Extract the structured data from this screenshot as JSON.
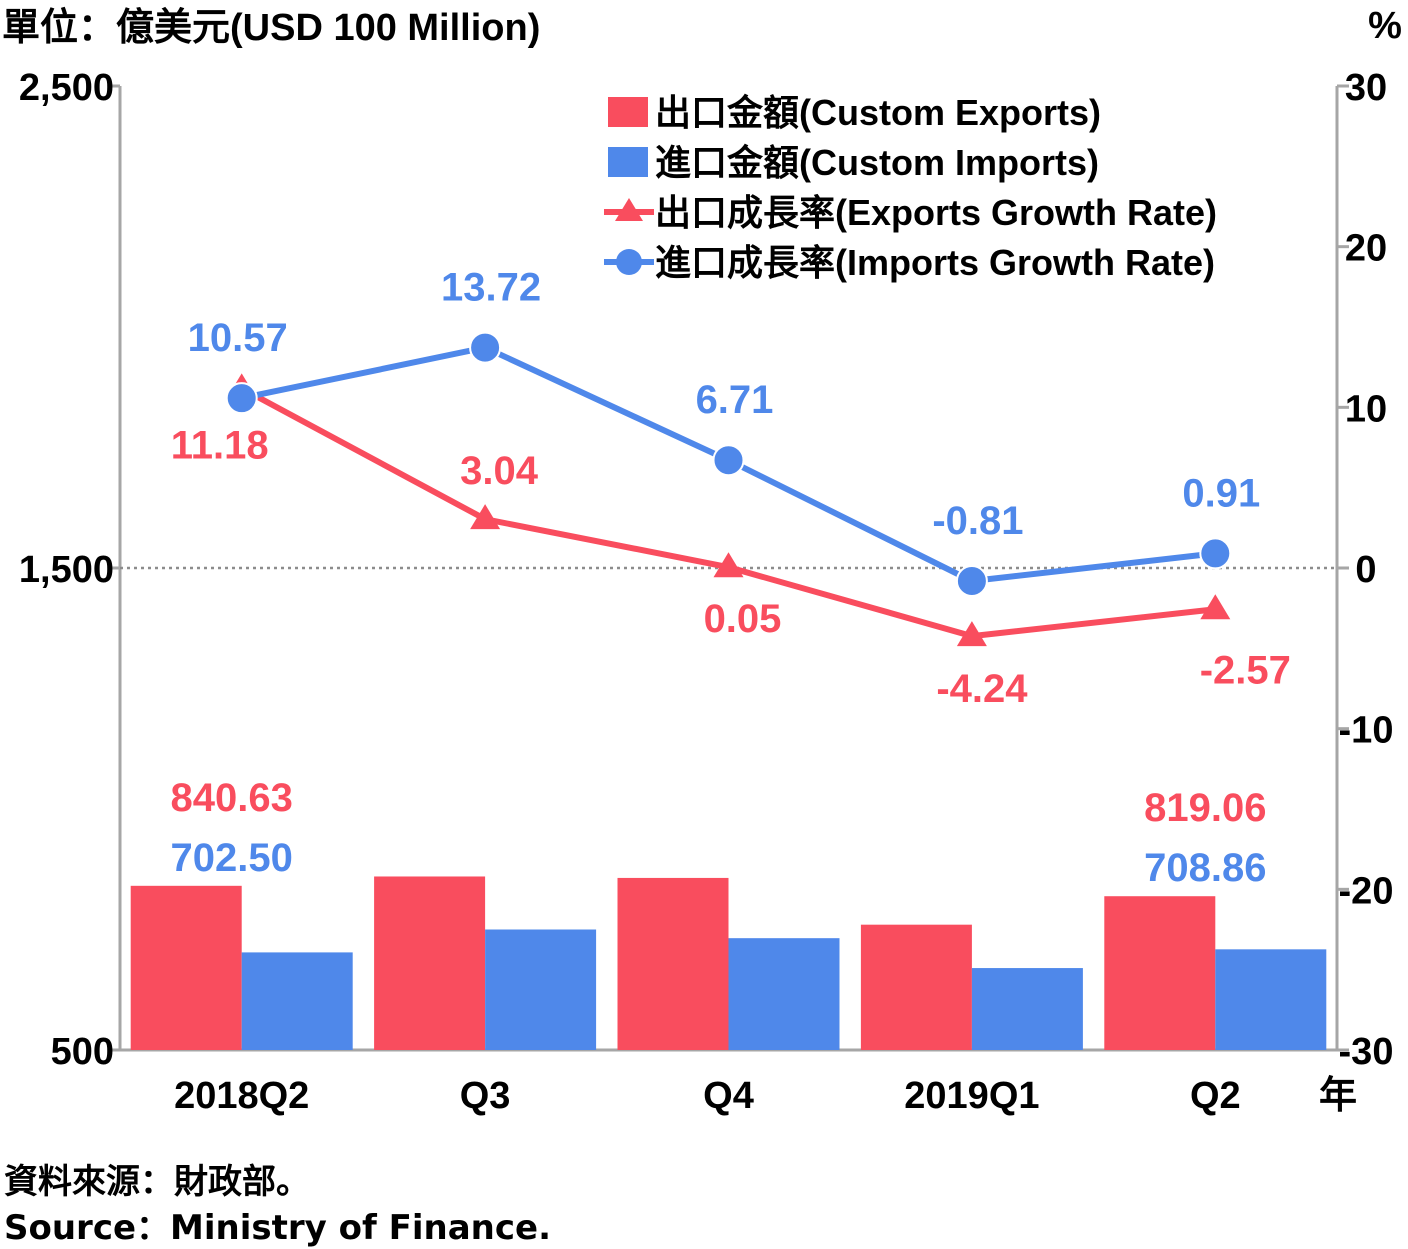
{
  "chart_data": {
    "type": "bar+line",
    "left_axis_unit": "單位：億美元(USD 100 Million)",
    "right_axis_unit": "%",
    "x_unit_label": "年",
    "categories": [
      "2018Q2",
      "Q3",
      "Q4",
      "2019Q1",
      "Q2"
    ],
    "left_axis": {
      "ticks": [
        "2,500",
        "1,500",
        "500"
      ],
      "tick_values": [
        2500,
        1500,
        500
      ],
      "ylim": [
        500,
        2500
      ]
    },
    "right_axis": {
      "ticks": [
        "30",
        "20",
        "10",
        "0",
        "-10",
        "-20",
        "-30"
      ],
      "tick_values": [
        30,
        20,
        10,
        0,
        -10,
        -20,
        -30
      ],
      "ylim": [
        -30,
        30
      ]
    },
    "zero_line": "dotted",
    "legend_placement": "top-right",
    "series": [
      {
        "name": "出口金額(Custom Exports)",
        "kind": "bar",
        "axis": "left",
        "color": "#f94d5e",
        "values": [
          840.63,
          860,
          857,
          760,
          819.06
        ],
        "labels": [
          "840.63",
          "",
          "",
          "",
          "819.06"
        ]
      },
      {
        "name": "進口金額(Custom Imports)",
        "kind": "bar",
        "axis": "left",
        "color": "#4f88ea",
        "values": [
          702.5,
          750,
          732,
          670,
          708.86
        ],
        "labels": [
          "702.50",
          "",
          "",
          "",
          "708.86"
        ]
      },
      {
        "name": "出口成長率(Exports Growth Rate)",
        "kind": "line",
        "marker": "triangle",
        "axis": "right",
        "color": "#f94d5e",
        "values": [
          11.18,
          3.04,
          0.05,
          -4.24,
          -2.57
        ],
        "labels": [
          "11.18",
          "3.04",
          "0.05",
          "-4.24",
          "-2.57"
        ]
      },
      {
        "name": "進口成長率(Imports Growth Rate)",
        "kind": "line",
        "marker": "circle",
        "axis": "right",
        "color": "#4f88ea",
        "values": [
          10.57,
          13.72,
          6.71,
          -0.81,
          0.91
        ],
        "labels": [
          "10.57",
          "13.72",
          "6.71",
          "-0.81",
          "0.91"
        ]
      }
    ]
  },
  "source": {
    "zh": "資料來源：財政部。",
    "en": "Source：Ministry of Finance."
  }
}
